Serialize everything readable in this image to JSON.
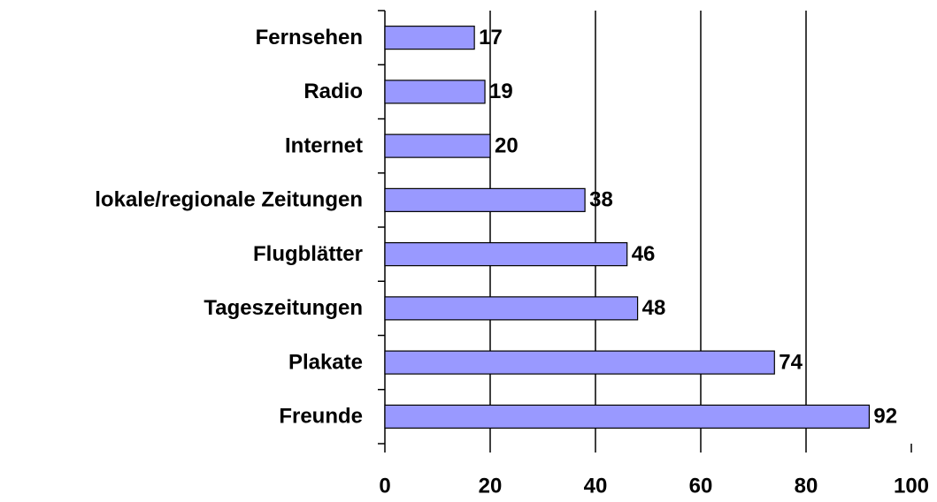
{
  "chart_data": {
    "type": "hbar",
    "categories": [
      "Fernsehen",
      "Radio",
      "Internet",
      "lokale/regionale Zeitungen",
      "Flugblätter",
      "Tageszeitungen",
      "Plakate",
      "Freunde"
    ],
    "values": [
      17,
      19,
      20,
      38,
      46,
      48,
      74,
      92
    ],
    "color": "#9999ff",
    "xlim": [
      0,
      100
    ],
    "xticks": [
      0,
      20,
      40,
      60,
      80,
      100
    ],
    "grid": true
  }
}
